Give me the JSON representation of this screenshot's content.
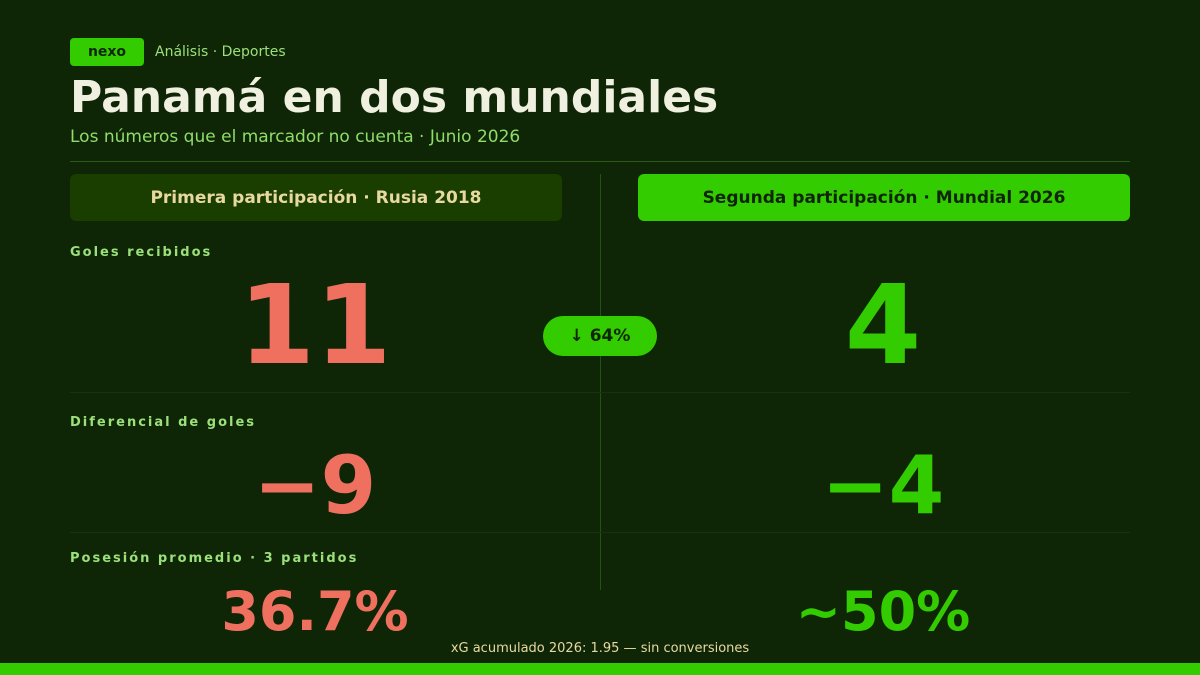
{
  "header": {
    "badge": "nexo",
    "section": "Análisis · Deportes",
    "title": "Panamá en dos mundiales",
    "subtitle": "Los números que el marcador no cuenta · Junio 2026"
  },
  "columns": [
    {
      "label": "Primera participación · Rusia 2018"
    },
    {
      "label": "Segunda participación · Mundial 2026"
    }
  ],
  "metrics": [
    {
      "label": "Goles recibidos",
      "values": [
        "11",
        "4"
      ],
      "change": "↓ 64%"
    },
    {
      "label": "Diferencial de goles",
      "values": [
        "−9",
        "−4"
      ]
    },
    {
      "label": "Posesión promedio · 3 partidos",
      "values": [
        "36.7%",
        "~50%"
      ]
    }
  ],
  "footnote": "xG acumulado 2026: 1.95 — sin conversiones"
}
